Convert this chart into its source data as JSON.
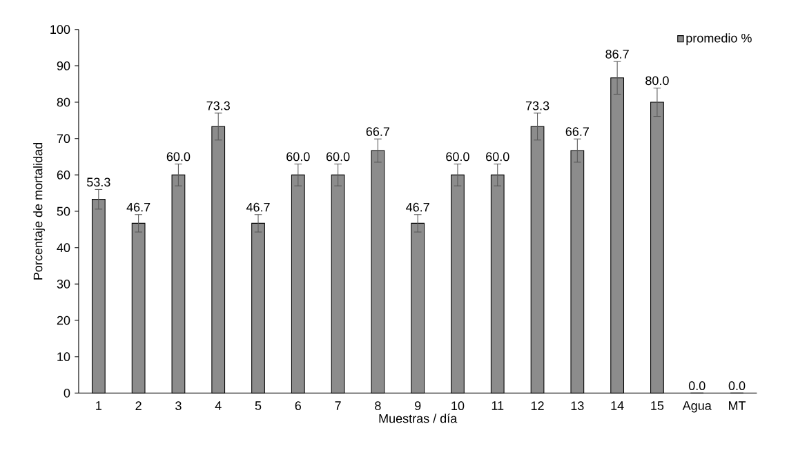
{
  "chart_data": {
    "type": "bar",
    "xlabel": "Muestras / día",
    "ylabel": "Porcentaje de mortalidad",
    "categories": [
      "1",
      "2",
      "3",
      "4",
      "5",
      "6",
      "7",
      "8",
      "9",
      "10",
      "11",
      "12",
      "13",
      "14",
      "15",
      "Agua",
      "MT"
    ],
    "series": [
      {
        "name": "promedio %",
        "color": "#8c8c8c",
        "values": [
          53.3,
          46.7,
          60.0,
          73.3,
          46.7,
          60.0,
          60.0,
          66.7,
          46.7,
          60.0,
          60.0,
          73.3,
          66.7,
          86.7,
          80.0,
          0.0,
          0.0
        ],
        "errors": [
          2.7,
          2.4,
          3.0,
          3.7,
          2.4,
          3.0,
          3.0,
          3.2,
          2.4,
          3.0,
          3.0,
          3.7,
          3.2,
          4.5,
          3.9,
          null,
          null
        ],
        "value_labels": [
          "53.3",
          "46.7",
          "60.0",
          "73.3",
          "46.7",
          "60.0",
          "60.0",
          "66.7",
          "46.7",
          "60.0",
          "60.0",
          "73.3",
          "66.7",
          "86.7",
          "80.0",
          "0.0",
          "0.0"
        ]
      }
    ],
    "ylim": [
      0,
      100
    ],
    "yticks": [
      0,
      10,
      20,
      30,
      40,
      50,
      60,
      70,
      80,
      90,
      100
    ],
    "legend": "top right",
    "grid": false
  }
}
